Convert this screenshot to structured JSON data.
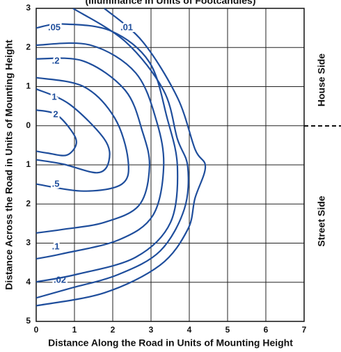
{
  "chart_data": {
    "type": "contour",
    "title": "(Illuminance in Units of Footcandles)",
    "x_label": "Distance Along the Road in Units of Mounting Height",
    "y_label": "Distance Across the Road in Units of Mounting Height",
    "side_labels": [
      "House Side",
      "Street Side"
    ],
    "color": "#1f4e9c",
    "grid": true,
    "xlim": [
      0,
      7
    ],
    "xticks": [
      0,
      1,
      2,
      3,
      4,
      5,
      6,
      7
    ],
    "ylim": [
      -5,
      3
    ],
    "yticks": [
      3,
      2,
      1,
      0,
      {
        "value": -1,
        "label": "1"
      },
      {
        "value": -2,
        "label": "2"
      },
      {
        "value": -3,
        "label": "3"
      },
      {
        "value": -4,
        "label": "4"
      },
      {
        "value": -5,
        "label": "5"
      }
    ],
    "contours": [
      {
        "label": ".01",
        "level": 0.01,
        "x": [
          1.78,
          2.78,
          3.69,
          4.15,
          4.42,
          4.15,
          3.96,
          3.24,
          1.78,
          0
        ],
        "y": [
          3,
          2.15,
          0.72,
          -0.6,
          -1.05,
          -1.85,
          -2.65,
          -3.56,
          -4.27,
          -4.6
        ]
      },
      {
        "label": ".02",
        "level": 0.02,
        "x": [
          0.96,
          2.33,
          3.33,
          3.69,
          3.96,
          3.87,
          3.24,
          2.15,
          0.87,
          0
        ],
        "y": [
          3,
          2.15,
          0.9,
          -0.34,
          -1.05,
          -2.13,
          -3.2,
          -3.8,
          -4.16,
          -4.4
        ]
      },
      {
        "label": ".05",
        "level": 0.05,
        "x": [
          0,
          0.69,
          1.96,
          2.96,
          3.42,
          3.69,
          3.51,
          2.6,
          1.05,
          0
        ],
        "y": [
          2.5,
          2.6,
          2.42,
          1.62,
          0.2,
          -1.05,
          -2.47,
          -3.36,
          -3.8,
          -3.99
        ]
      },
      {
        "label": ".1",
        "level": 0.1,
        "x": [
          0,
          1.42,
          2.6,
          3.15,
          3.33,
          3.05,
          2.15,
          0.69,
          0
        ],
        "y": [
          2.06,
          2.06,
          1.35,
          0.1,
          -1.05,
          -2.29,
          -2.92,
          -3.27,
          -3.4
        ]
      },
      {
        "label": ".2",
        "level": 0.2,
        "x": [
          0,
          1.24,
          2.33,
          2.78,
          2.96,
          2.69,
          1.78,
          0.69,
          0
        ],
        "y": [
          1.71,
          1.65,
          0.9,
          -0.16,
          -1.05,
          -2.03,
          -2.47,
          -2.65,
          -2.74
        ]
      },
      {
        "label": ".5",
        "level": 0.5,
        "x": [
          0,
          1.24,
          2.05,
          2.4,
          2.24,
          1.24,
          0
        ],
        "y": [
          1.23,
          1.0,
          0.2,
          -0.87,
          -1.49,
          -1.67,
          -1.49
        ]
      },
      {
        "label": "1",
        "level": 1,
        "x": [
          0,
          0.87,
          1.78,
          1.9,
          1.6,
          0.7,
          0
        ],
        "y": [
          0.94,
          0.55,
          -0.34,
          -0.9,
          -1.2,
          -0.98,
          -0.87
        ]
      },
      {
        "label": "2",
        "level": 2,
        "x": [
          0,
          0.5,
          0.9,
          1.05,
          0.8,
          0.3,
          0
        ],
        "y": [
          0.4,
          0.3,
          -0.1,
          -0.45,
          -0.75,
          -0.7,
          -0.65
        ]
      }
    ]
  }
}
